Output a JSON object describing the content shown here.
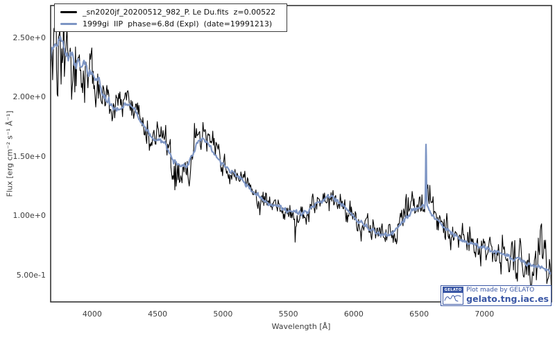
{
  "colors": {
    "accent_blue": "#7d95c4",
    "series_black": "#000000",
    "watermark_blue": "#3a57a5",
    "axis": "#333333",
    "text": "#3d3d3d"
  },
  "legend": {
    "entries": [
      {
        "label": "_sn2020jf_20200512_982_P. Le Du.fits  z=0.00522",
        "color": "#000000"
      },
      {
        "label": "1999gi  IIP  phase=6.8d (Expl)  (date=19991213)",
        "color": "#7d95c4"
      }
    ]
  },
  "watermark": {
    "logo_text": "GELATO",
    "line1": "Plot made by GELATO",
    "line2": "gelato.tng.iac.es"
  },
  "chart_data": {
    "type": "line",
    "title": "",
    "xlabel": "Wavelength [Å]",
    "ylabel": "Flux [erg cm⁻² s⁻¹ Å⁻¹]",
    "x_range": [
      3682,
      7513
    ],
    "y_range": [
      0.275,
      2.775
    ],
    "grid": false,
    "legend_position": "upper left",
    "x_ticks": [
      {
        "value": 4000,
        "label": "4000"
      },
      {
        "value": 4500,
        "label": "4500"
      },
      {
        "value": 5000,
        "label": "5000"
      },
      {
        "value": 5500,
        "label": "5500"
      },
      {
        "value": 6000,
        "label": "6000"
      },
      {
        "value": 6500,
        "label": "6500"
      },
      {
        "value": 7000,
        "label": "7000"
      }
    ],
    "y_ticks": [
      {
        "value": 2.5,
        "label": "2.50e+0"
      },
      {
        "value": 2.0,
        "label": "2.00e+0"
      },
      {
        "value": 1.5,
        "label": "1.50e+0"
      },
      {
        "value": 1.0,
        "label": "1.00e+0"
      },
      {
        "value": 0.5,
        "label": "5.00e-1"
      }
    ],
    "sample_step": 5,
    "noise_seed": 1318699,
    "template_points": [
      [
        3682,
        2.33
      ],
      [
        3690,
        2.39
      ],
      [
        3710,
        2.43
      ],
      [
        3730,
        2.46
      ],
      [
        3750,
        2.48
      ],
      [
        3768,
        2.5
      ],
      [
        3785,
        2.43
      ],
      [
        3800,
        2.36
      ],
      [
        3815,
        2.33
      ],
      [
        3830,
        2.36
      ],
      [
        3845,
        2.33
      ],
      [
        3860,
        2.29
      ],
      [
        3875,
        2.27
      ],
      [
        3890,
        2.31
      ],
      [
        3905,
        2.27
      ],
      [
        3920,
        2.25
      ],
      [
        3935,
        2.28
      ],
      [
        3950,
        2.26
      ],
      [
        3965,
        2.22
      ],
      [
        3980,
        2.24
      ],
      [
        4000,
        2.21
      ],
      [
        4020,
        2.17
      ],
      [
        4040,
        2.13
      ],
      [
        4060,
        2.09
      ],
      [
        4080,
        2.05
      ],
      [
        4100,
        2.0
      ],
      [
        4120,
        1.96
      ],
      [
        4140,
        1.93
      ],
      [
        4160,
        1.9
      ],
      [
        4180,
        1.89
      ],
      [
        4200,
        1.9
      ],
      [
        4220,
        1.92
      ],
      [
        4240,
        1.93
      ],
      [
        4260,
        1.94
      ],
      [
        4280,
        1.94
      ],
      [
        4300,
        1.92
      ],
      [
        4320,
        1.9
      ],
      [
        4340,
        1.87
      ],
      [
        4360,
        1.83
      ],
      [
        4380,
        1.79
      ],
      [
        4400,
        1.76
      ],
      [
        4420,
        1.72
      ],
      [
        4440,
        1.69
      ],
      [
        4460,
        1.66
      ],
      [
        4480,
        1.64
      ],
      [
        4500,
        1.63
      ],
      [
        4520,
        1.64
      ],
      [
        4540,
        1.63
      ],
      [
        4560,
        1.6
      ],
      [
        4580,
        1.56
      ],
      [
        4600,
        1.52
      ],
      [
        4620,
        1.48
      ],
      [
        4640,
        1.45
      ],
      [
        4660,
        1.43
      ],
      [
        4680,
        1.42
      ],
      [
        4700,
        1.41
      ],
      [
        4720,
        1.43
      ],
      [
        4740,
        1.46
      ],
      [
        4760,
        1.5
      ],
      [
        4780,
        1.55
      ],
      [
        4800,
        1.6
      ],
      [
        4820,
        1.63
      ],
      [
        4840,
        1.65
      ],
      [
        4860,
        1.64
      ],
      [
        4880,
        1.62
      ],
      [
        4900,
        1.58
      ],
      [
        4920,
        1.54
      ],
      [
        4940,
        1.51
      ],
      [
        4960,
        1.48
      ],
      [
        4980,
        1.45
      ],
      [
        5000,
        1.43
      ],
      [
        5050,
        1.39
      ],
      [
        5100,
        1.34
      ],
      [
        5150,
        1.29
      ],
      [
        5200,
        1.24
      ],
      [
        5250,
        1.19
      ],
      [
        5300,
        1.14
      ],
      [
        5350,
        1.1
      ],
      [
        5400,
        1.08
      ],
      [
        5450,
        1.06
      ],
      [
        5500,
        1.05
      ],
      [
        5550,
        1.04
      ],
      [
        5600,
        1.03
      ],
      [
        5650,
        1.05
      ],
      [
        5700,
        1.09
      ],
      [
        5750,
        1.13
      ],
      [
        5800,
        1.16
      ],
      [
        5850,
        1.15
      ],
      [
        5900,
        1.11
      ],
      [
        5950,
        1.05
      ],
      [
        6000,
        0.99
      ],
      [
        6050,
        0.95
      ],
      [
        6100,
        0.91
      ],
      [
        6150,
        0.88
      ],
      [
        6200,
        0.85
      ],
      [
        6250,
        0.84
      ],
      [
        6300,
        0.86
      ],
      [
        6350,
        0.92
      ],
      [
        6400,
        0.99
      ],
      [
        6450,
        1.04
      ],
      [
        6500,
        1.07
      ],
      [
        6530,
        1.08
      ],
      [
        6555,
        1.09
      ],
      [
        6580,
        1.05
      ],
      [
        6600,
        1.01
      ],
      [
        6650,
        0.95
      ],
      [
        6700,
        0.9
      ],
      [
        6750,
        0.86
      ],
      [
        6800,
        0.82
      ],
      [
        6850,
        0.79
      ],
      [
        6900,
        0.77
      ],
      [
        6950,
        0.75
      ],
      [
        7000,
        0.73
      ],
      [
        7050,
        0.71
      ],
      [
        7100,
        0.69
      ],
      [
        7150,
        0.67
      ],
      [
        7200,
        0.65
      ],
      [
        7250,
        0.63
      ],
      [
        7300,
        0.61
      ],
      [
        7350,
        0.59
      ],
      [
        7400,
        0.57
      ],
      [
        7460,
        0.555
      ],
      [
        7513,
        0.53
      ]
    ],
    "series": [
      {
        "name": "_sn2020jf_20200512_982_P. Le Du.fits",
        "redshift": "z=0.00522",
        "color": "#000000",
        "width": 1.1,
        "noise_corr": 0.5,
        "noise_segments": [
          [
            3682,
            3880,
            0.28,
            -0.1
          ],
          [
            3880,
            4080,
            0.12,
            -0.02
          ],
          [
            4080,
            4600,
            0.07,
            0
          ],
          [
            4600,
            4780,
            0.065,
            -0.09
          ],
          [
            4780,
            4970,
            0.065,
            0.1
          ],
          [
            4970,
            5550,
            0.05,
            0
          ],
          [
            5550,
            6080,
            0.06,
            -0.02
          ],
          [
            6080,
            6380,
            0.06,
            -0.02
          ],
          [
            6380,
            6620,
            0.08,
            0.07
          ],
          [
            6620,
            7120,
            0.07,
            -0.01
          ],
          [
            7120,
            7514,
            0.11,
            -0.02
          ]
        ],
        "features": [
          [
            7462,
            12,
            0.3
          ]
        ]
      },
      {
        "name": "1999gi IIP phase=6.8d (Expl) (date=19991213)",
        "color": "#7d95c4",
        "width": 2.2,
        "noise_corr": 0.5,
        "noise_segments": [
          [
            3682,
            4150,
            0.022,
            0
          ],
          [
            4150,
            7514,
            0.011,
            0
          ]
        ],
        "spike": {
          "center": 6553,
          "amplitude": 0.52,
          "width": 4
        }
      }
    ]
  }
}
